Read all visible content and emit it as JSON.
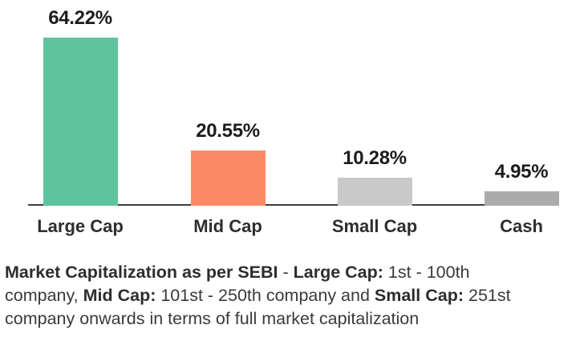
{
  "chart_data": {
    "type": "bar",
    "categories": [
      "Large Cap",
      "Mid Cap",
      "Small Cap",
      "Cash"
    ],
    "values": [
      64.22,
      20.55,
      10.28,
      4.95
    ],
    "value_labels": [
      "64.22%",
      "20.55%",
      "10.28%",
      "4.95%"
    ],
    "bar_colors": [
      "#5EC49E",
      "#FA8A67",
      "#C9C9C9",
      "#ABABAB"
    ],
    "axis_color": "#3D3D3D",
    "title": "",
    "xlabel": "",
    "ylabel": "",
    "ylim": [
      0,
      70
    ],
    "grid": false,
    "legend_position": "none",
    "data_labels": true
  },
  "footnote": {
    "lines": [
      [
        {
          "text": "Market Capitalization as per SEBI",
          "bold": true
        },
        {
          "text": " - ",
          "bold": false
        },
        {
          "text": "Large Cap:",
          "bold": true
        },
        {
          "text": " 1st - 100th",
          "bold": false
        }
      ],
      [
        {
          "text": "company, ",
          "bold": false
        },
        {
          "text": "Mid Cap:",
          "bold": true
        },
        {
          "text": " 101st - 250th company and ",
          "bold": false
        },
        {
          "text": "Small Cap:",
          "bold": true
        },
        {
          "text": " 251st",
          "bold": false
        }
      ],
      [
        {
          "text": "company onwards in terms of full market capitalization",
          "bold": false
        }
      ]
    ]
  }
}
